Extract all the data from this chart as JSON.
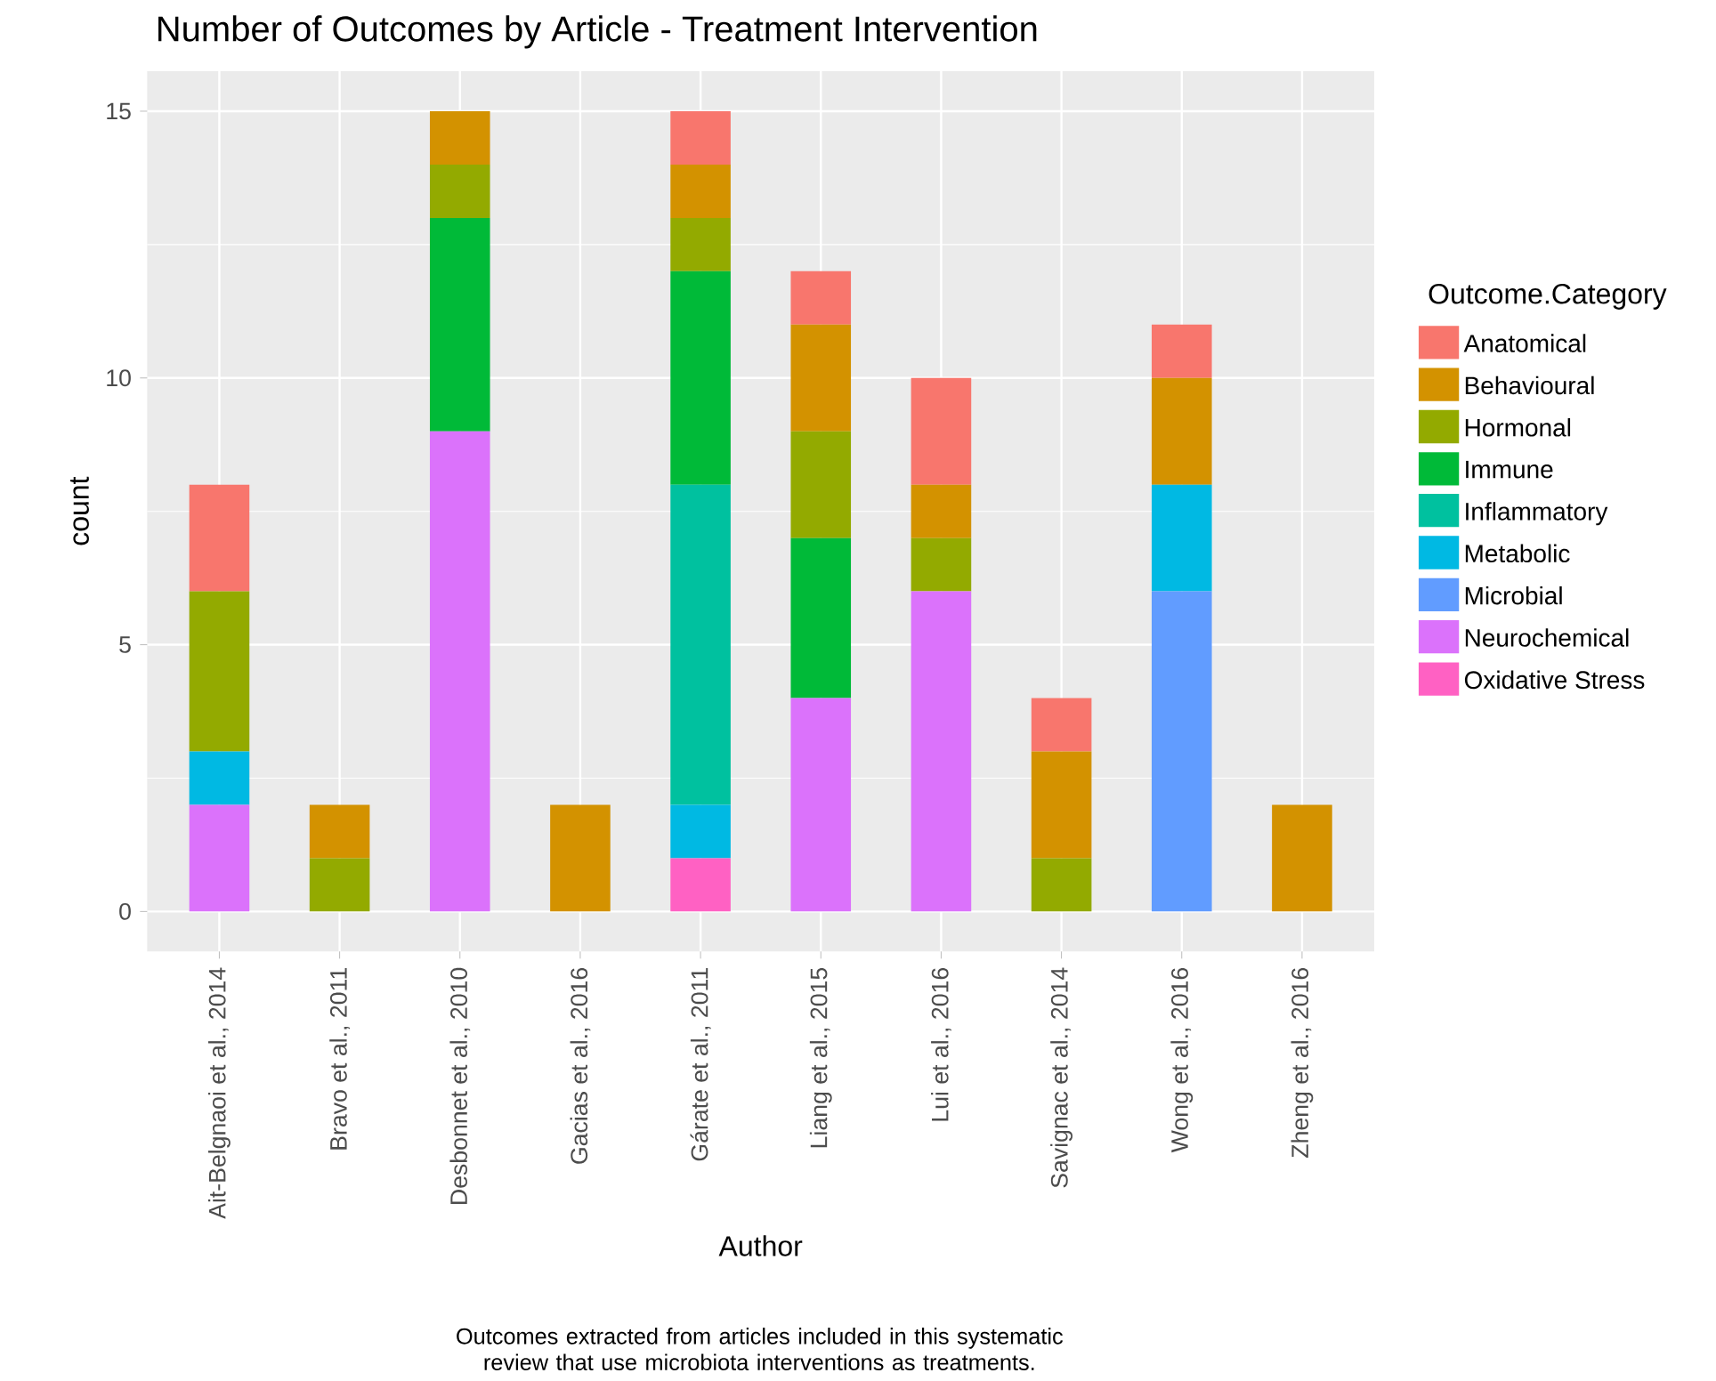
{
  "chart_data": {
    "type": "bar",
    "stacked": true,
    "title": "Number of Outcomes by Article - Treatment Intervention",
    "xlabel": "Author",
    "ylabel": "count",
    "legend_title": "Outcome.Category",
    "legend": "right",
    "grid": true,
    "categories": [
      "Ait-Belgnaoi et al., 2014",
      "Bravo et al., 2011",
      "Desbonnet et al., 2010",
      "Gacias et al., 2016",
      "Gárate et al., 2011",
      "Liang et al., 2015",
      "Lui et al., 2016",
      "Savignac et al., 2014",
      "Wong et al., 2016",
      "Zheng et al., 2016"
    ],
    "ylim": [
      -0.75,
      15.75
    ],
    "yticks": [
      0,
      5,
      10,
      15
    ],
    "series": [
      {
        "name": "Oxidative Stress",
        "color": "#ff61c3",
        "values": [
          0,
          0,
          0,
          0,
          1,
          0,
          0,
          0,
          0,
          0
        ]
      },
      {
        "name": "Neurochemical",
        "color": "#db72fb",
        "values": [
          2,
          0,
          9,
          0,
          0,
          4,
          6,
          0,
          0,
          0
        ]
      },
      {
        "name": "Microbial",
        "color": "#619cff",
        "values": [
          0,
          0,
          0,
          0,
          0,
          0,
          0,
          0,
          6,
          0
        ]
      },
      {
        "name": "Metabolic",
        "color": "#00b9e3",
        "values": [
          1,
          0,
          0,
          0,
          1,
          0,
          0,
          0,
          2,
          0
        ]
      },
      {
        "name": "Inflammatory",
        "color": "#00c19f",
        "values": [
          0,
          0,
          0,
          0,
          6,
          0,
          0,
          0,
          0,
          0
        ]
      },
      {
        "name": "Immune",
        "color": "#00ba38",
        "values": [
          0,
          0,
          4,
          0,
          4,
          3,
          0,
          0,
          0,
          0
        ]
      },
      {
        "name": "Hormonal",
        "color": "#93aa00",
        "values": [
          3,
          1,
          1,
          0,
          1,
          2,
          1,
          1,
          0,
          0
        ]
      },
      {
        "name": "Behavioural",
        "color": "#d39200",
        "values": [
          0,
          1,
          1,
          2,
          1,
          2,
          1,
          2,
          2,
          2
        ]
      },
      {
        "name": "Anatomical",
        "color": "#f8766d",
        "values": [
          2,
          0,
          0,
          0,
          1,
          1,
          2,
          1,
          1,
          0
        ]
      }
    ],
    "annotations": [
      "Outcomes extracted from articles included in this systematic review that use microbiota interventions as treatments."
    ]
  }
}
